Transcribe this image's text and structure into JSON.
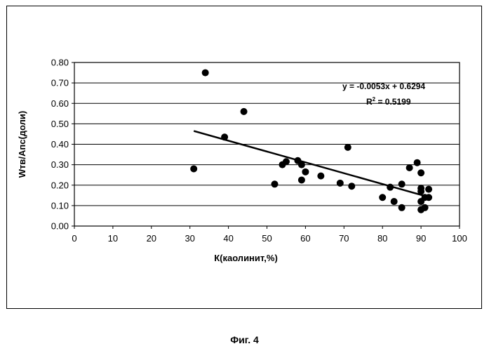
{
  "figure_caption": "Фиг. 4",
  "chart_data": {
    "type": "scatter",
    "title": "",
    "xlabel": "К(каолинит,%)",
    "ylabel": "Wтв/Апс(доли)",
    "xlim": [
      0,
      100
    ],
    "ylim": [
      0,
      0.8
    ],
    "x_ticks": [
      "0",
      "10",
      "20",
      "30",
      "40",
      "50",
      "60",
      "70",
      "80",
      "90",
      "100"
    ],
    "y_ticks": [
      "0.00",
      "0.10",
      "0.20",
      "0.30",
      "0.40",
      "0.50",
      "0.60",
      "0.70",
      "0.80"
    ],
    "grid": "horizontal",
    "legend": "none",
    "marker_color": "#000000",
    "points": [
      {
        "x": 31,
        "y": 0.28
      },
      {
        "x": 34,
        "y": 0.75
      },
      {
        "x": 39,
        "y": 0.435
      },
      {
        "x": 44,
        "y": 0.56
      },
      {
        "x": 52,
        "y": 0.205
      },
      {
        "x": 54,
        "y": 0.3
      },
      {
        "x": 55,
        "y": 0.315
      },
      {
        "x": 58,
        "y": 0.32
      },
      {
        "x": 59,
        "y": 0.3
      },
      {
        "x": 59,
        "y": 0.225
      },
      {
        "x": 60,
        "y": 0.265
      },
      {
        "x": 64,
        "y": 0.245
      },
      {
        "x": 69,
        "y": 0.21
      },
      {
        "x": 71,
        "y": 0.385
      },
      {
        "x": 72,
        "y": 0.195
      },
      {
        "x": 80,
        "y": 0.14
      },
      {
        "x": 82,
        "y": 0.19
      },
      {
        "x": 83,
        "y": 0.12
      },
      {
        "x": 85,
        "y": 0.205
      },
      {
        "x": 85,
        "y": 0.09
      },
      {
        "x": 87,
        "y": 0.285
      },
      {
        "x": 89,
        "y": 0.31
      },
      {
        "x": 90,
        "y": 0.26
      },
      {
        "x": 90,
        "y": 0.185
      },
      {
        "x": 90,
        "y": 0.17
      },
      {
        "x": 90,
        "y": 0.12
      },
      {
        "x": 90,
        "y": 0.08
      },
      {
        "x": 91,
        "y": 0.09
      },
      {
        "x": 91,
        "y": 0.14
      },
      {
        "x": 92,
        "y": 0.18
      },
      {
        "x": 92,
        "y": 0.14
      }
    ],
    "trendline": {
      "slope": -0.0053,
      "intercept": 0.6294,
      "x_range": [
        31,
        92
      ],
      "equation": "y = -0.0053x + 0.6294",
      "r2_label": "R",
      "r2_sup": "2",
      "r2_value": " = 0.5199"
    }
  }
}
